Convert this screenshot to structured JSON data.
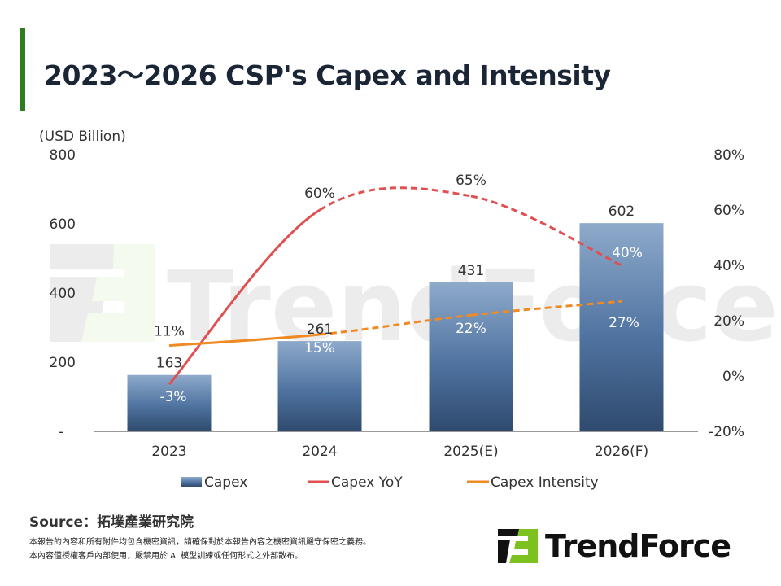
{
  "title": "2023～2026 CSP's Capex and Intensity",
  "source": "Source：拓墣產業研究院",
  "notes": [
    "本報告的內容和所有附件均包含機密資訊，請確保對於本報告內容之機密資訊嚴守保密之義務。",
    "本內容僅授權客戶內部使用，嚴禁用於 AI 模型訓練或任何形式之外部散布。"
  ],
  "watermark": "TrendForce",
  "logo_text": "TrendForce",
  "colors": {
    "accent": "#2e7d1e",
    "bar_top": "#8eaacb",
    "bar_bottom": "#2f4a6e",
    "yoy": "#e05050",
    "intensity": "#f08a24",
    "logo_green": "#7dc11f"
  },
  "chart_data": {
    "type": "bar+line",
    "categories": [
      "2023",
      "2024",
      "2025(E)",
      "2026(F)"
    ],
    "ylabel": "(USD Billion)",
    "ylim": [
      0,
      800
    ],
    "yticks": [
      "-",
      "200",
      "400",
      "600",
      "800"
    ],
    "y2lim": [
      -20,
      80
    ],
    "y2ticks": [
      "-20%",
      "0%",
      "20%",
      "40%",
      "60%",
      "80%"
    ],
    "series": [
      {
        "name": "Capex",
        "type": "bar",
        "values": [
          163,
          261,
          431,
          602
        ]
      },
      {
        "name": "Capex YoY",
        "type": "line",
        "values": [
          -3,
          60,
          65,
          40
        ],
        "labels": [
          "-3%",
          "60%",
          "65%",
          "40%"
        ],
        "dashed_from": "2024"
      },
      {
        "name": "Capex Intensity",
        "type": "line",
        "values": [
          11,
          15,
          22,
          27
        ],
        "labels": [
          "11%",
          "15%",
          "22%",
          "27%"
        ],
        "dashed_from": "2024"
      }
    ],
    "legend": "bottom"
  }
}
